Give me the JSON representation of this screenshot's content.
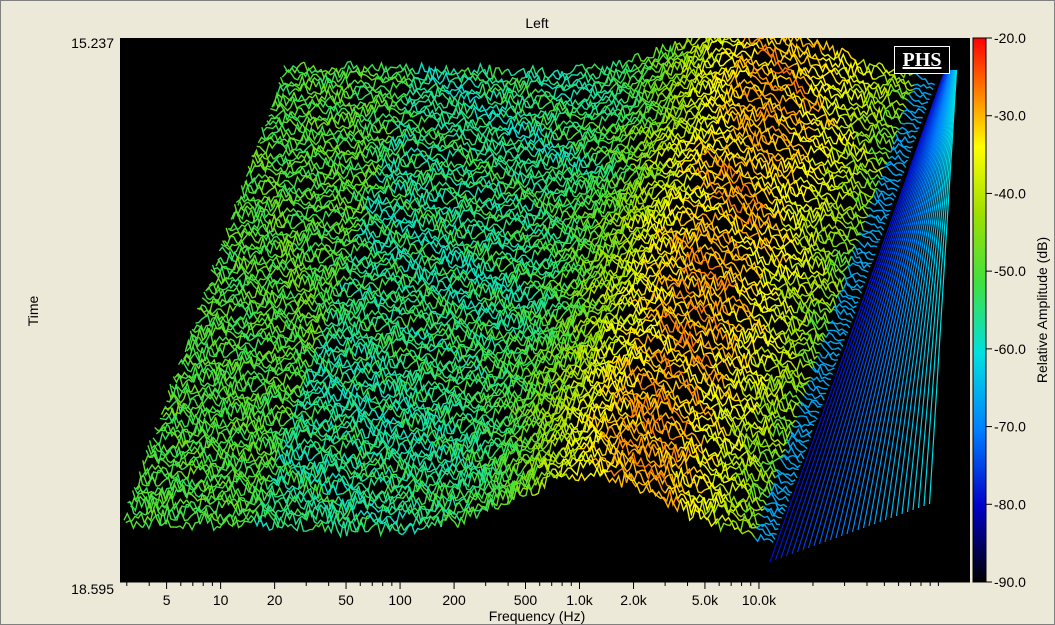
{
  "chart_data": {
    "type": "heatmap",
    "title": "Left",
    "xlabel": "Frequency (Hz)",
    "ylabel": "Time",
    "x_scale": "log",
    "x_ticks": [
      "5",
      "10",
      "20",
      "50",
      "100",
      "200",
      "500",
      "1.0k",
      "2.0k",
      "5.0k",
      "10.0k"
    ],
    "x_tick_values": [
      5,
      10,
      20,
      50,
      100,
      200,
      500,
      1000,
      2000,
      5000,
      10000
    ],
    "y_range": [
      15.237,
      18.595
    ],
    "y_ticks": [
      "15.237",
      "18.595"
    ],
    "colorbar": {
      "label": "Relative Amplitude (dB)",
      "range": [
        -90,
        -20
      ],
      "ticks": [
        "-20.0",
        "-30.0",
        "-40.0",
        "-50.0",
        "-60.0",
        "-70.0",
        "-80.0",
        "-90.0"
      ],
      "tick_values": [
        -20,
        -30,
        -40,
        -50,
        -60,
        -70,
        -80,
        -90
      ],
      "colors": [
        "#000000",
        "#0000c8",
        "#0080ff",
        "#00e0e0",
        "#40e040",
        "#a0e000",
        "#ffff00",
        "#ff8000",
        "#ff0000"
      ]
    },
    "logo": "PHS",
    "background": "#000000"
  }
}
